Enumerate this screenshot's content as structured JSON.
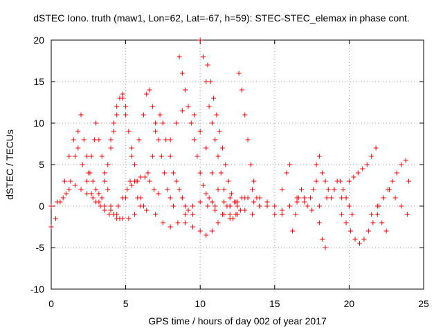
{
  "chart_data": {
    "type": "scatter",
    "title": "dSTEC Iono. truth (maw1, Lon=62, Lat=-67, h=59): STEC-STEC_elemax in phase cont.",
    "xlabel": "GPS time / hours of day 002 of year 2017",
    "ylabel": "dSTEC  / TECUs",
    "xlim": [
      0,
      25
    ],
    "ylim": [
      -10,
      20
    ],
    "xticks": [
      "0",
      "5",
      "10",
      "15",
      "20",
      "25"
    ],
    "yticks": [
      "-10",
      "-5",
      "0",
      "5",
      "10",
      "15",
      "20"
    ],
    "grid": true,
    "marker": "+",
    "color": "#ff0000",
    "series": [
      {
        "x": [
          0.0,
          0.3,
          0.6,
          0.9,
          1.2,
          1.5,
          1.8,
          2.1,
          2.4,
          2.7,
          3.0,
          3.3,
          3.6,
          3.9,
          4.2,
          4.5,
          4.8,
          5.1,
          5.4,
          5.7,
          6.0,
          6.3,
          6.6,
          6.9,
          7.2
        ],
        "y": [
          -2.5,
          -1.5,
          0.5,
          3,
          6,
          8,
          7,
          5,
          3,
          1.5,
          0.5,
          0,
          -0.5,
          -1,
          -1,
          0,
          1,
          2,
          2.5,
          3,
          3.5,
          3.5,
          3,
          2,
          1.5
        ]
      },
      {
        "x": [
          0.0,
          0.4,
          0.8,
          1.2,
          1.6,
          2.0,
          2.4,
          2.8,
          3.2,
          3.6,
          4.0,
          4.4,
          4.8,
          5.2,
          5.6
        ],
        "y": [
          0,
          0.5,
          1,
          2,
          2.5,
          2,
          1.5,
          1,
          0.5,
          0,
          -0.5,
          -1,
          -1.5,
          -1.5,
          -1
        ]
      },
      {
        "x": [
          1.0,
          1.3,
          1.6,
          1.8,
          2.0,
          2.2,
          2.4,
          2.6,
          2.8,
          3.0,
          3.2,
          3.4
        ],
        "y": [
          1.5,
          3,
          6,
          9,
          11,
          8,
          6,
          4,
          3,
          2,
          1.5,
          1
        ]
      },
      {
        "x": [
          2.5,
          2.7,
          2.9,
          3.0,
          3.2,
          3.4,
          3.6,
          3.8,
          4.0,
          4.2,
          4.4,
          4.6
        ],
        "y": [
          4,
          6,
          8,
          10,
          8,
          6,
          4,
          2,
          0,
          -1,
          -1.5,
          -1.5
        ]
      },
      {
        "x": [
          3.6,
          3.8,
          4.0,
          4.2,
          4.4,
          4.6,
          4.8,
          5.0,
          5.2,
          5.4,
          5.6,
          5.8,
          6.0
        ],
        "y": [
          3,
          5,
          7,
          9,
          11,
          13,
          13.5,
          12,
          9,
          6,
          3,
          1,
          0
        ]
      },
      {
        "x": [
          4.0,
          4.2,
          4.4,
          4.6,
          4.8,
          5.0,
          5.2,
          5.4,
          5.6,
          5.8,
          6.0,
          6.2,
          6.4
        ],
        "y": [
          8,
          10,
          12,
          13,
          13,
          11,
          9,
          7,
          5,
          3,
          1,
          0,
          -0.5
        ]
      },
      {
        "x": [
          5.0,
          5.3,
          5.6,
          5.9,
          6.2,
          6.4,
          6.6,
          6.8,
          7.0,
          7.2,
          7.4,
          7.6,
          7.8,
          8.0,
          8.2
        ],
        "y": [
          1,
          3,
          5,
          8,
          11,
          13.5,
          14,
          12,
          10,
          8,
          6,
          4,
          2,
          1,
          0
        ]
      },
      {
        "x": [
          6.5,
          6.8,
          7.0,
          7.3,
          7.5,
          7.7,
          8.0,
          8.2,
          8.4,
          8.6,
          8.8,
          9.0,
          9.2,
          9.5
        ],
        "y": [
          4,
          6,
          9,
          11,
          10,
          8,
          6,
          4,
          3,
          2,
          1,
          0,
          -0.5,
          -1
        ]
      },
      {
        "x": [
          8.6,
          8.8,
          9.0,
          9.2,
          9.4,
          9.6,
          9.8,
          10.0,
          10.2,
          10.4,
          10.6,
          10.8,
          11.0
        ],
        "y": [
          18,
          16,
          14,
          12,
          10,
          8,
          6,
          4,
          2.5,
          1.5,
          1,
          0.5,
          0
        ]
      },
      {
        "x": [
          7.0,
          7.5,
          8.0,
          8.5,
          9.0,
          9.5,
          10.0,
          10.5,
          11.0,
          11.5,
          12.0,
          12.5,
          13.0
        ],
        "y": [
          -1,
          -2,
          -2.5,
          -2,
          -1,
          0,
          0.5,
          0,
          -0.5,
          -1,
          -1.5,
          -1,
          -0.5
        ]
      },
      {
        "x": [
          8.0,
          8.4,
          8.8,
          9.2,
          9.6,
          10.0,
          10.4,
          10.8,
          11.2,
          11.6,
          12.0
        ],
        "y": [
          8,
          10,
          11.5,
          12,
          11,
          9,
          7,
          4,
          2,
          0.5,
          0
        ]
      },
      {
        "x": [
          10.0,
          10.2,
          10.4,
          10.6,
          10.8,
          11.0,
          11.2,
          11.4,
          11.6,
          11.8,
          12.0,
          12.2,
          12.4
        ],
        "y": [
          20,
          18,
          15,
          12,
          10,
          8,
          6,
          4,
          2,
          0,
          -1,
          -1.5,
          -1
        ]
      },
      {
        "x": [
          10.5,
          10.7,
          10.9,
          11.1,
          11.3,
          11.5,
          11.7,
          11.9,
          12.1,
          12.3,
          12.5,
          12.7
        ],
        "y": [
          17,
          15,
          13,
          11,
          9,
          7,
          5,
          3,
          1.5,
          0.5,
          0,
          -0.5
        ]
      },
      {
        "x": [
          12.6,
          12.8,
          13.0,
          13.2,
          13.4,
          13.6,
          13.8,
          14.0
        ],
        "y": [
          16,
          14,
          11,
          8,
          5,
          3,
          1,
          0
        ]
      },
      {
        "x": [
          9.0,
          9.5,
          10.0,
          10.4,
          10.8,
          11.2,
          11.6,
          12.0,
          12.4,
          12.8,
          13.2,
          13.6,
          14.0
        ],
        "y": [
          -2,
          -2.5,
          -3,
          -3.5,
          -3,
          -2,
          -1,
          0,
          0.5,
          1,
          1,
          0.5,
          0
        ]
      },
      {
        "x": [
          13.5,
          14.0,
          14.5,
          15.0,
          15.5,
          16.0,
          16.5,
          17.0,
          17.5,
          18.0,
          18.5,
          19.0,
          19.5,
          20.0
        ],
        "y": [
          -1,
          0,
          0.5,
          0,
          -1,
          0,
          1,
          0.5,
          -0.5,
          0,
          1,
          2,
          1,
          0
        ]
      },
      {
        "x": [
          15.5,
          15.8,
          16.0,
          16.2,
          16.4,
          16.6,
          16.8,
          17.0,
          17.2,
          17.4,
          17.6,
          17.8,
          18.0,
          18.2,
          18.4
        ],
        "y": [
          2,
          4,
          5,
          -3,
          -1,
          1,
          2,
          1,
          0,
          1,
          2,
          3,
          -2,
          -4,
          -5
        ]
      },
      {
        "x": [
          17.8,
          18.0,
          18.2,
          18.4,
          18.6,
          18.8,
          19.0,
          19.2,
          19.4,
          19.6,
          19.8,
          20.0,
          20.2
        ],
        "y": [
          5,
          6,
          4,
          3,
          2,
          1,
          2,
          3,
          3,
          2,
          1,
          0,
          -1
        ]
      },
      {
        "x": [
          19.5,
          19.8,
          20.1,
          20.4,
          20.7,
          21.0,
          21.3,
          21.6,
          21.9,
          22.2,
          22.5
        ],
        "y": [
          -1,
          -2,
          -3,
          -4,
          -4.5,
          -4,
          -3,
          -2,
          -1,
          -2,
          -3
        ]
      },
      {
        "x": [
          20.0,
          20.3,
          20.6,
          20.9,
          21.2,
          21.5,
          21.8
        ],
        "y": [
          3,
          3.5,
          4,
          4.5,
          5,
          6,
          7
        ]
      },
      {
        "x": [
          22.0,
          22.3,
          22.6,
          22.9,
          23.2,
          23.5,
          23.8,
          24.0
        ],
        "y": [
          0,
          1,
          2,
          3,
          4,
          5,
          5.5,
          3
        ]
      },
      {
        "x": [
          21.5,
          21.9,
          22.3,
          22.7,
          23.1,
          23.5,
          23.9
        ],
        "y": [
          -1,
          0,
          1,
          2,
          1,
          0,
          -1
        ]
      },
      {
        "x": [
          12.0,
          12.5,
          13.0,
          13.5,
          14.0,
          14.5,
          15.0,
          15.5,
          16.0,
          16.5,
          17.0
        ],
        "y": [
          1,
          0.5,
          1,
          2,
          1,
          0,
          -1,
          -0.5,
          0,
          0.5,
          1
        ]
      }
    ]
  }
}
